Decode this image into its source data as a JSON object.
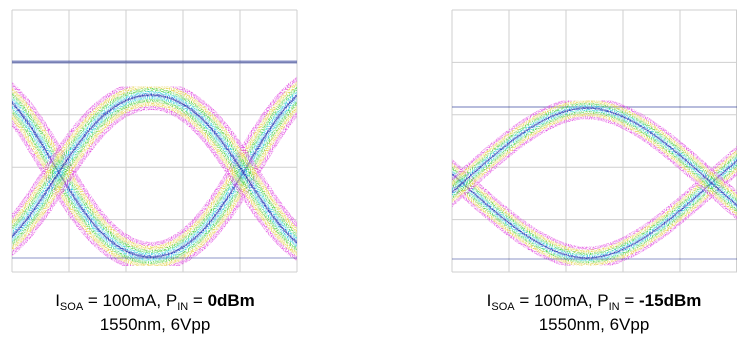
{
  "panels": [
    {
      "caption": {
        "line1": {
          "i": "I",
          "i_sub": "SOA",
          "mid": " = 100mA, P",
          "p_sub": "IN",
          "eq": " = ",
          "power": "0dBm"
        },
        "line2": "1550nm, 6Vpp"
      }
    },
    {
      "caption": {
        "line1": {
          "i": "I",
          "i_sub": "SOA",
          "mid": " = 100mA, P",
          "p_sub": "IN",
          "eq": " = ",
          "power": "-15dBm"
        },
        "line2": "1550nm, 6Vpp"
      }
    }
  ]
}
